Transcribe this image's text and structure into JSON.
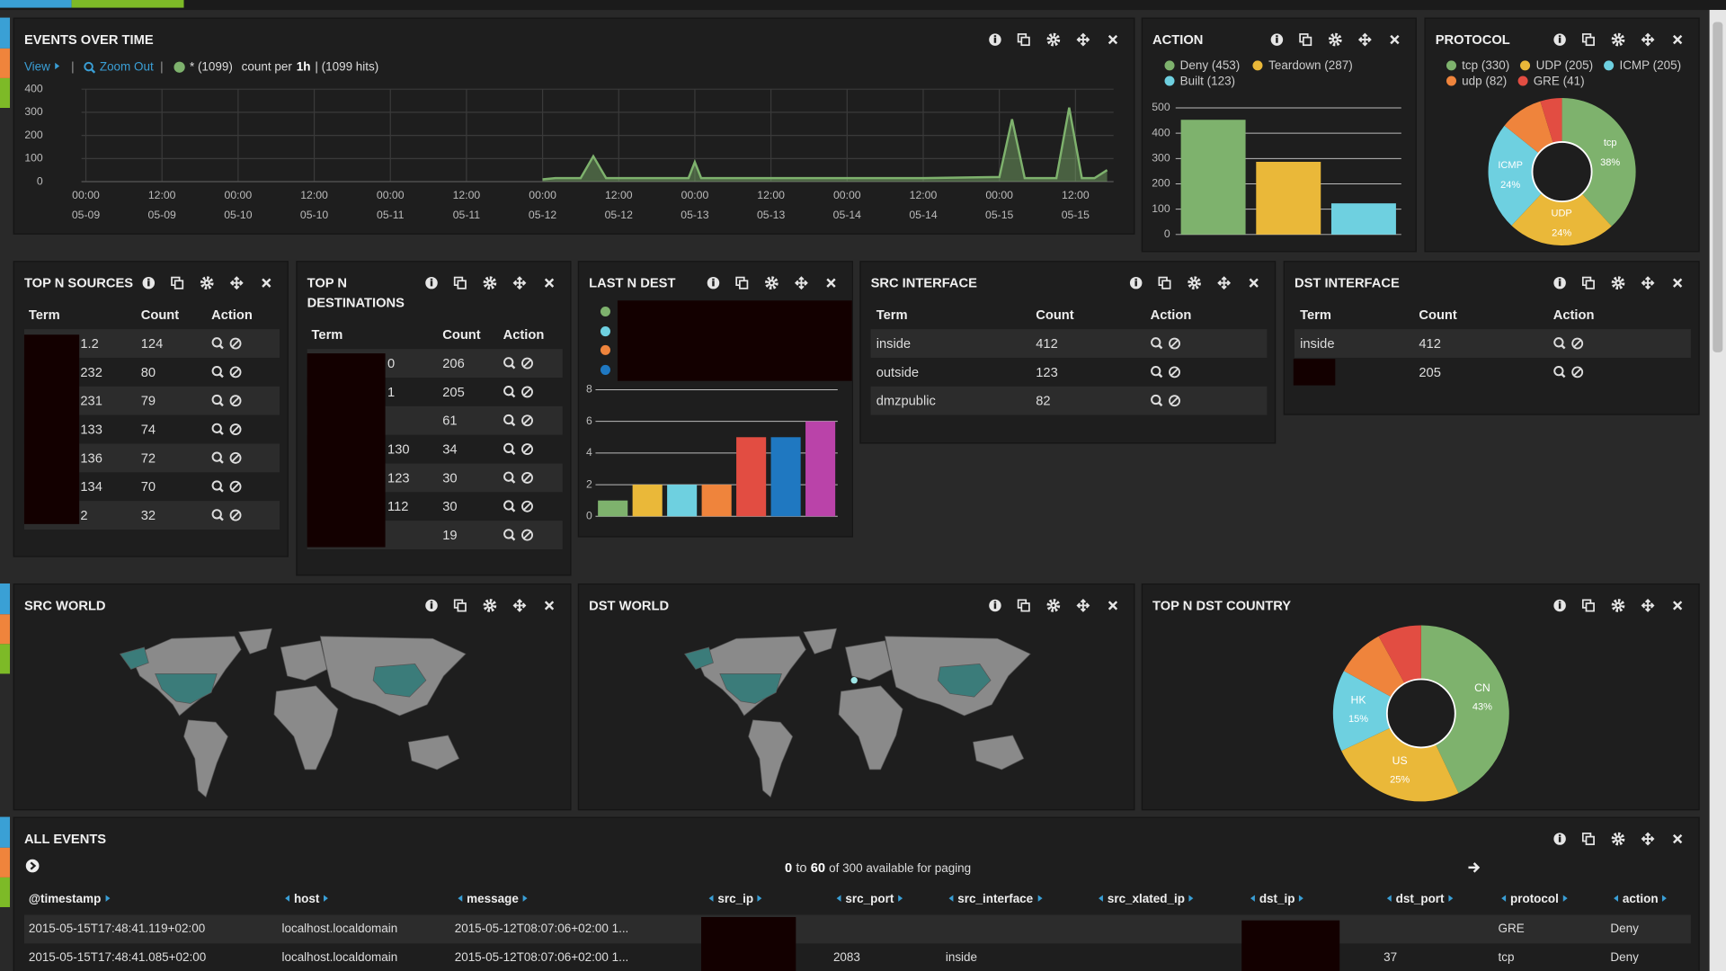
{
  "panels": {
    "events": {
      "title": "EVENTS OVER TIME",
      "view": "View",
      "zoom_out": "Zoom Out",
      "query": "* (1099)",
      "count_per": "count per",
      "interval": "1h",
      "hits": "| (1099 hits)",
      "chart_data": {
        "type": "line",
        "x": [
          "05-12 00:00",
          "05-12 02:00",
          "05-12 06:00",
          "05-12 08:00",
          "05-12 10:00",
          "05-12 18:00",
          "05-12 23:00",
          "05-13 00:00",
          "05-13 01:00",
          "05-14 12:00",
          "05-15 00:00",
          "05-15 02:00",
          "05-15 04:00",
          "05-15 09:00",
          "05-15 11:00",
          "05-15 13:00",
          "05-15 15:00",
          "05-15 17:00"
        ],
        "series": [
          {
            "name": "*",
            "color": "#7eb26d",
            "values": [
              10,
              15,
              15,
              110,
              15,
              15,
              15,
              85,
              15,
              15,
              20,
              270,
              15,
              15,
              320,
              15,
              15,
              50
            ]
          }
        ],
        "xlim": [
          "05-09 00:00",
          "05-15 18:00"
        ],
        "xticks": [
          {
            "value": "05-09 00:00",
            "label": [
              "00:00",
              "05-09"
            ]
          },
          {
            "value": "05-09 12:00",
            "label": [
              "12:00",
              "05-09"
            ]
          },
          {
            "value": "05-10 00:00",
            "label": [
              "00:00",
              "05-10"
            ]
          },
          {
            "value": "05-10 12:00",
            "label": [
              "12:00",
              "05-10"
            ]
          },
          {
            "value": "05-11 00:00",
            "label": [
              "00:00",
              "05-11"
            ]
          },
          {
            "value": "05-11 12:00",
            "label": [
              "12:00",
              "05-11"
            ]
          },
          {
            "value": "05-12 00:00",
            "label": [
              "00:00",
              "05-12"
            ]
          },
          {
            "value": "05-12 12:00",
            "label": [
              "12:00",
              "05-12"
            ]
          },
          {
            "value": "05-13 00:00",
            "label": [
              "00:00",
              "05-13"
            ]
          },
          {
            "value": "05-13 12:00",
            "label": [
              "12:00",
              "05-13"
            ]
          },
          {
            "value": "05-14 00:00",
            "label": [
              "00:00",
              "05-14"
            ]
          },
          {
            "value": "05-14 12:00",
            "label": [
              "12:00",
              "05-14"
            ]
          },
          {
            "value": "05-15 00:00",
            "label": [
              "00:00",
              "05-15"
            ]
          },
          {
            "value": "05-15 12:00",
            "label": [
              "12:00",
              "05-15"
            ]
          }
        ],
        "ylim": [
          0,
          400
        ],
        "yticks": [
          0,
          100,
          200,
          300,
          400
        ],
        "grid": true
      }
    },
    "action": {
      "title": "ACTION",
      "chart_data": {
        "type": "bar",
        "legend": [
          "Deny (453)",
          "Teardown (287)",
          "Built (123)"
        ],
        "values": [
          453,
          287,
          123
        ],
        "colors": [
          "#7eb26d",
          "#eab839",
          "#6ed0e0"
        ],
        "ylim": [
          0,
          500
        ],
        "yticks": [
          0,
          100,
          200,
          300,
          400,
          500
        ],
        "grid": true
      }
    },
    "protocol": {
      "title": "PROTOCOL",
      "chart_data": {
        "type": "pie",
        "legend": [
          "tcp (330)",
          "UDP (205)",
          "ICMP (205)",
          "udp (82)",
          "GRE (41)"
        ],
        "values": [
          330,
          205,
          205,
          82,
          41
        ],
        "colors": [
          "#7eb26d",
          "#eab839",
          "#6ed0e0",
          "#ef843c",
          "#e24d42"
        ],
        "slice_labels": [
          {
            "name": "tcp",
            "pct": "38%"
          },
          {
            "name": "UDP",
            "pct": "24%"
          },
          {
            "name": "ICMP",
            "pct": "24%"
          },
          null,
          null
        ]
      }
    },
    "top_sources": {
      "title": "TOP N SOURCES",
      "columns": [
        "Term",
        "Count",
        "Action"
      ],
      "rows": [
        {
          "term": "1.2",
          "count": "124"
        },
        {
          "term": "232",
          "count": "80"
        },
        {
          "term": "231",
          "count": "79"
        },
        {
          "term": "133",
          "count": "74"
        },
        {
          "term": "136",
          "count": "72"
        },
        {
          "term": "134",
          "count": "70"
        },
        {
          "term": "2",
          "count": "32"
        }
      ]
    },
    "top_destinations": {
      "title": "TOP N DESTINATIONS",
      "columns": [
        "Term",
        "Count",
        "Action"
      ],
      "rows": [
        {
          "term": "0",
          "count": "206"
        },
        {
          "term": "1",
          "count": "205"
        },
        {
          "term": null,
          "count": "61"
        },
        {
          "term": "130",
          "count": "34"
        },
        {
          "term": "123",
          "count": "30"
        },
        {
          "term": "112",
          "count": "30"
        },
        {
          "term": null,
          "count": "19"
        }
      ]
    },
    "last_n_dest": {
      "title": "LAST N DEST",
      "chart_data": {
        "type": "bar",
        "values": [
          1,
          2,
          2,
          2,
          5,
          5,
          6
        ],
        "colors": [
          "#7eb26d",
          "#eab839",
          "#6ed0e0",
          "#ef843c",
          "#e24d42",
          "#1f78c1",
          "#ba43a9"
        ],
        "ylim": [
          0,
          8
        ],
        "yticks": [
          0,
          2,
          4,
          6,
          8
        ],
        "grid": true
      }
    },
    "src_interface": {
      "title": "SRC INTERFACE",
      "columns": [
        "Term",
        "Count",
        "Action"
      ],
      "rows": [
        {
          "term": "inside",
          "count": "412"
        },
        {
          "term": "outside",
          "count": "123"
        },
        {
          "term": "dmzpublic",
          "count": "82"
        }
      ]
    },
    "dst_interface": {
      "title": "DST INTERFACE",
      "columns": [
        "Term",
        "Count",
        "Action"
      ],
      "rows": [
        {
          "term": "inside",
          "count": "412"
        },
        {
          "term": null,
          "count": "205"
        }
      ]
    },
    "src_world": {
      "title": "SRC WORLD"
    },
    "dst_world": {
      "title": "DST WORLD"
    },
    "top_dst_country": {
      "title": "TOP N DST COUNTRY",
      "chart_data": {
        "type": "pie",
        "categories": [
          "CN",
          "US",
          "HK",
          null,
          null
        ],
        "values": [
          43,
          25,
          15,
          9,
          8
        ],
        "value_labels": [
          "43%",
          "25%",
          "15%",
          null,
          null
        ],
        "colors": [
          "#7eb26d",
          "#eab839",
          "#6ed0e0",
          "#ef843c",
          "#e24d42"
        ]
      }
    },
    "all_events": {
      "title": "ALL EVENTS",
      "paging": {
        "from": "0",
        "sep": "to",
        "to": "60",
        "total": "of 300 available for paging"
      },
      "columns": [
        "@timestamp",
        "host",
        "message",
        "src_ip",
        "src_port",
        "src_interface",
        "src_xlated_ip",
        "dst_ip",
        "dst_port",
        "protocol",
        "action"
      ],
      "rows": [
        [
          "2015-05-15T17:48:41.119+02:00",
          "localhost.localdomain",
          "2015-05-12T08:07:06+02:00 1...",
          null,
          null,
          null,
          null,
          null,
          null,
          "GRE",
          "Deny"
        ],
        [
          "2015-05-15T17:48:41.085+02:00",
          "localhost.localdomain",
          "2015-05-12T08:07:06+02:00 1...",
          null,
          "2083",
          "inside",
          null,
          null,
          "37",
          "tcp",
          "Deny"
        ]
      ]
    }
  }
}
